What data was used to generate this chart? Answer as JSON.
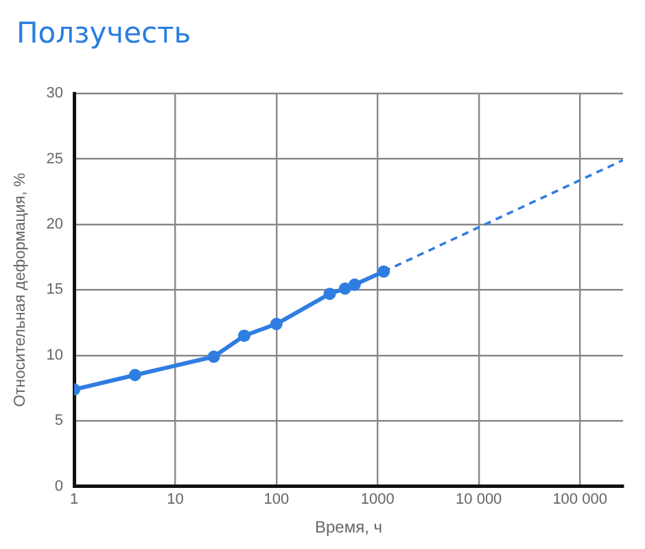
{
  "chart_data": {
    "type": "line",
    "title": "Ползучесть",
    "xlabel": "Время, ч",
    "ylabel": "Относительная деформация, %",
    "log": "x",
    "grid": true,
    "legend": false,
    "xlim": [
      1,
      267000
    ],
    "xticks": [
      1,
      10,
      100,
      1000,
      {
        "value": 10000,
        "label": "10 000"
      },
      {
        "value": 100000,
        "label": "100 000"
      }
    ],
    "ylim": [
      0,
      30
    ],
    "yticks": [
      0,
      5,
      10,
      15,
      20,
      25,
      30
    ],
    "series": [
      {
        "color": "#2f7de1",
        "marker": "circle",
        "line_style": "solid",
        "x": [
          1,
          4,
          24,
          48,
          100,
          336,
          476,
          593,
          1150
        ],
        "values": [
          7.4,
          8.5,
          9.9,
          11.5,
          12.4,
          14.7,
          15.1,
          15.4,
          16.4
        ]
      },
      {
        "color": "#2f7de1",
        "marker": "none",
        "line_style": "dashed",
        "x": [
          1150,
          267000
        ],
        "values": [
          16.4,
          24.9
        ]
      }
    ]
  }
}
